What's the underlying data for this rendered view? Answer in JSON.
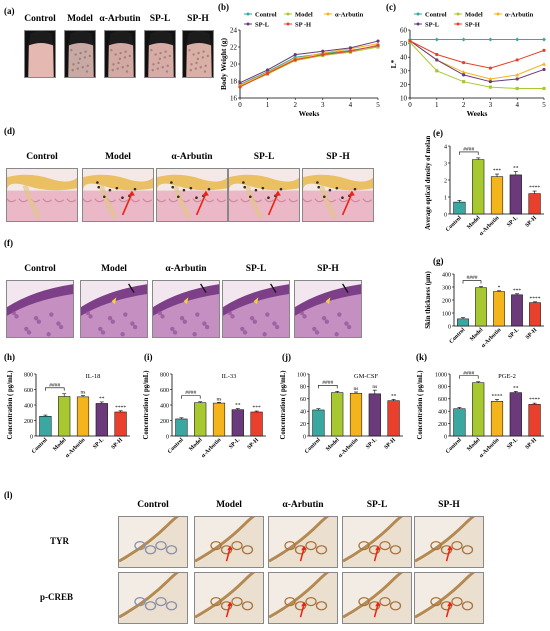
{
  "panels": {
    "a": {
      "label": "(a)",
      "groups": [
        "Control",
        "Model",
        "α-Arbutin",
        "SP-L",
        "SP-H"
      ]
    },
    "b": {
      "label": "(b)"
    },
    "c": {
      "label": "(c)"
    },
    "d": {
      "label": "(d)",
      "groups": [
        "Control",
        "Model",
        "α-Arbutin",
        "SP-L",
        "SP -H"
      ]
    },
    "e": {
      "label": "(e)"
    },
    "f": {
      "label": "(f)",
      "groups": [
        "Control",
        "Model",
        "α-Arbutin",
        "SP-L",
        "SP-H"
      ]
    },
    "g": {
      "label": "(g)"
    },
    "h": {
      "label": "(h)"
    },
    "i": {
      "label": "(i)"
    },
    "j": {
      "label": "(j)"
    },
    "k": {
      "label": "(k)"
    },
    "l": {
      "label": "(l)",
      "groups": [
        "Control",
        "Model",
        "α-Arbutin",
        "SP-L",
        "SP-H"
      ],
      "rows": [
        "TYR",
        "p-CREB"
      ]
    }
  },
  "colors": {
    "control": "#3aa7a0",
    "model": "#a8c832",
    "arbutin": "#f3b51b",
    "spl": "#6a3a7a",
    "sph": "#e8402c",
    "stain_he_bg": "#f1c6d3",
    "stain_fontana": "#f6e5cf",
    "stain_ihc": "#e9ddc9"
  },
  "chart_data": [
    {
      "id": "b",
      "type": "line",
      "xlabel": "Weeks",
      "ylabel": "Body Weight (g)",
      "ylim": [
        16,
        24
      ],
      "yticks": [
        "16",
        "18",
        "20",
        "22",
        "24"
      ],
      "x": [
        0,
        1,
        2,
        3,
        4,
        5
      ],
      "xticks": [
        "0",
        "1",
        "2",
        "3",
        "4",
        "5"
      ],
      "legend": "top",
      "series": [
        {
          "name": "Control",
          "values": [
            17.6,
            19.1,
            20.8,
            21.2,
            21.6,
            22.1
          ]
        },
        {
          "name": "Model",
          "values": [
            17.4,
            18.8,
            20.4,
            21.0,
            21.4,
            22.0
          ]
        },
        {
          "name": "α-Arbutin",
          "values": [
            17.5,
            19.0,
            20.6,
            21.3,
            21.8,
            22.4
          ]
        },
        {
          "name": "SP-L",
          "values": [
            17.8,
            19.3,
            21.1,
            21.5,
            21.9,
            22.7
          ]
        },
        {
          "name": "SP -H",
          "values": [
            17.3,
            18.9,
            20.5,
            21.1,
            21.5,
            22.2
          ]
        }
      ]
    },
    {
      "id": "c",
      "type": "line",
      "xlabel": "Weeks",
      "ylabel": "L*",
      "ylim": [
        10,
        60
      ],
      "yticks": [
        "10",
        "20",
        "30",
        "40",
        "50",
        "60"
      ],
      "x": [
        0,
        1,
        2,
        3,
        4,
        5
      ],
      "xticks": [
        "0",
        "1",
        "2",
        "3",
        "4",
        "5"
      ],
      "legend": "top",
      "series": [
        {
          "name": "Control",
          "values": [
            53,
            53,
            53,
            53,
            53,
            53
          ]
        },
        {
          "name": "Model",
          "values": [
            51,
            30,
            22,
            18,
            17,
            17
          ]
        },
        {
          "name": "α-Arbutin",
          "values": [
            52,
            38,
            29,
            24,
            27,
            35
          ]
        },
        {
          "name": "SP-L",
          "values": [
            52,
            38,
            27,
            22,
            24,
            31
          ]
        },
        {
          "name": "SP-H",
          "values": [
            52,
            42,
            36,
            32,
            38,
            45
          ]
        }
      ]
    },
    {
      "id": "e",
      "type": "bar",
      "categories": [
        "Control",
        "Model",
        "α-Arbutin",
        "SP-L",
        "SP-H"
      ],
      "values": [
        0.07,
        0.32,
        0.22,
        0.23,
        0.12
      ],
      "errors": [
        0.01,
        0.01,
        0.015,
        0.02,
        0.015
      ],
      "ylim": [
        0,
        0.4
      ],
      "yticks": [
        "0",
        "1",
        "2",
        "3",
        "4"
      ],
      "ylabel": "Average optical density of melanin",
      "sig": [
        "",
        "",
        "***",
        "**",
        "****"
      ],
      "bracket": "####"
    },
    {
      "id": "g",
      "type": "bar",
      "categories": [
        "Control",
        "Model",
        "α-Arbutin",
        "SP-L",
        "SP-H"
      ],
      "values": [
        55,
        295,
        265,
        240,
        180
      ],
      "errors": [
        10,
        8,
        6,
        8,
        6
      ],
      "ylim": [
        0,
        400
      ],
      "yticks": [
        "0",
        "100",
        "200",
        "300",
        "400"
      ],
      "ylabel": "Skin thickness (μm)",
      "sig": [
        "",
        "",
        "*",
        "***",
        "****"
      ],
      "bracket": "####"
    },
    {
      "id": "h",
      "type": "bar",
      "title": "IL-18",
      "categories": [
        "Control",
        "Model",
        "α-Arbutin",
        "SP-L",
        "SP-H"
      ],
      "values": [
        255,
        510,
        505,
        420,
        310
      ],
      "errors": [
        15,
        35,
        15,
        20,
        15
      ],
      "ylim": [
        0,
        800
      ],
      "yticks": [
        "0",
        "200",
        "400",
        "600",
        "800"
      ],
      "ylabel": "Concentration ( pg/mL)",
      "sig": [
        "",
        "",
        "ns",
        "**",
        "****"
      ],
      "bracket": "####"
    },
    {
      "id": "i",
      "type": "bar",
      "title": "IL-33",
      "categories": [
        "Control",
        "Model",
        "α-Arbutin",
        "SP-L",
        "SP-H"
      ],
      "values": [
        220,
        430,
        425,
        340,
        310
      ],
      "errors": [
        15,
        12,
        10,
        15,
        12
      ],
      "ylim": [
        0,
        800
      ],
      "yticks": [
        "0",
        "200",
        "400",
        "600",
        "800"
      ],
      "ylabel": "Concentration ( pg/mL)",
      "sig": [
        "",
        "",
        "ns",
        "**",
        "***"
      ],
      "bracket": "####"
    },
    {
      "id": "j",
      "type": "bar",
      "title": "GM-CSF",
      "categories": [
        "Control",
        "Model",
        "α-Arbutin",
        "SP-L",
        "SP-H"
      ],
      "values": [
        42,
        70,
        69,
        68,
        57
      ],
      "errors": [
        2,
        2,
        2,
        6,
        2
      ],
      "ylim": [
        0,
        100
      ],
      "yticks": [
        "0",
        "20",
        "40",
        "60",
        "80",
        "100"
      ],
      "ylabel": "Concentration ( pg/mL)",
      "sig": [
        "",
        "",
        "ns",
        "ns",
        "**"
      ],
      "bracket": "####"
    },
    {
      "id": "k",
      "type": "bar",
      "title": "PGE-2",
      "categories": [
        "Control",
        "Model",
        "α-Arbutin",
        "SP-L",
        "SP-H"
      ],
      "values": [
        440,
        860,
        560,
        700,
        510
      ],
      "errors": [
        20,
        15,
        30,
        20,
        20
      ],
      "ylim": [
        0,
        1000
      ],
      "yticks": [
        "0",
        "200",
        "400",
        "600",
        "800",
        "1000"
      ],
      "ylabel": "Concentration ( pg/mL)",
      "sig": [
        "",
        "",
        "****",
        "**",
        "****"
      ],
      "bracket": "####"
    }
  ]
}
